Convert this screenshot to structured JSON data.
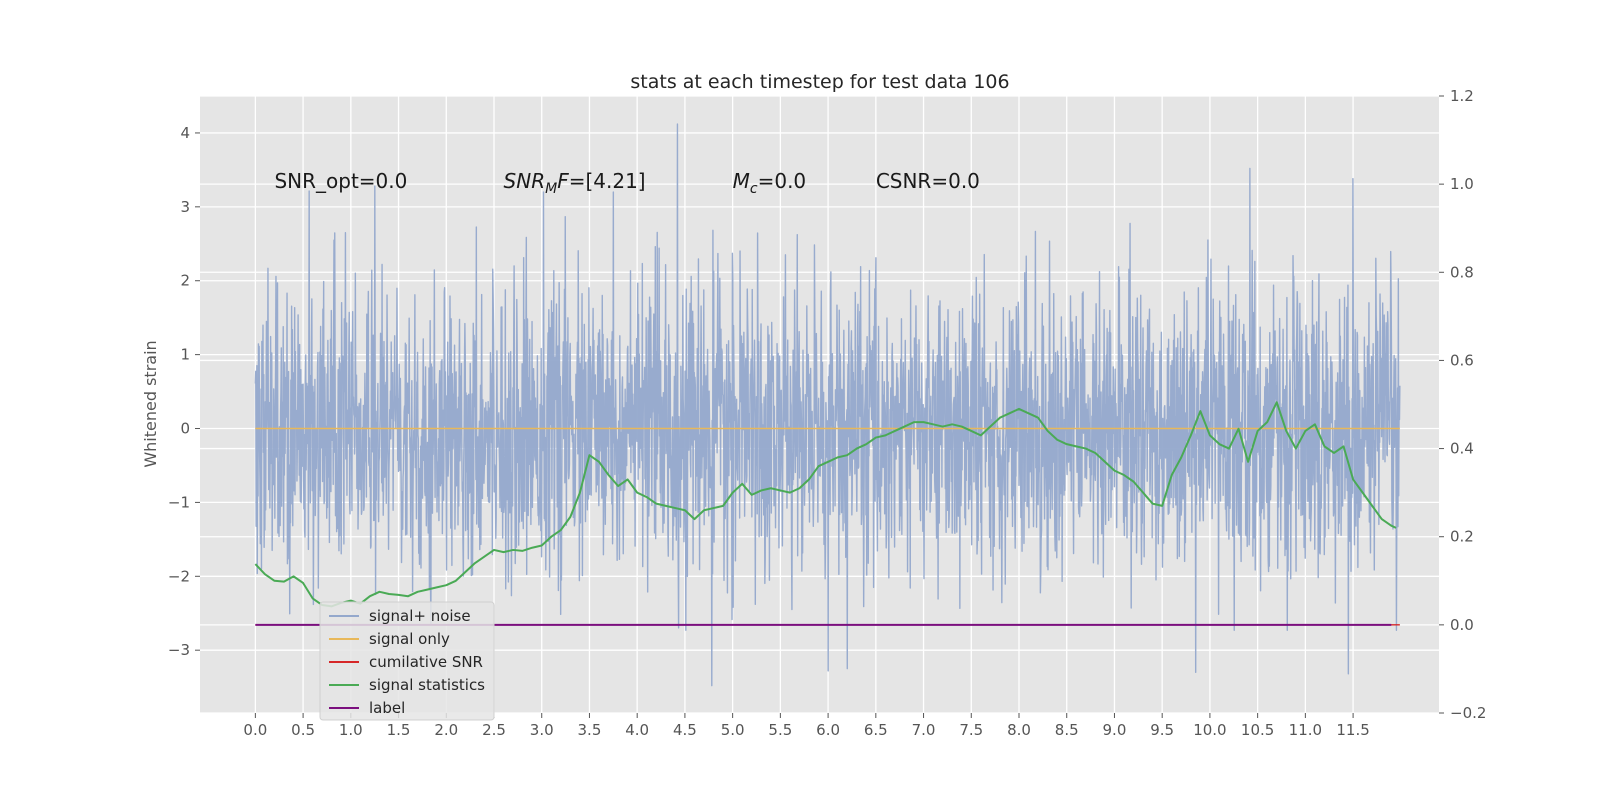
{
  "chart_data": {
    "type": "line",
    "title": "stats at each timestep for test data 106",
    "ylabel": "Whitened strain",
    "xlim": [
      -0.58,
      12.4
    ],
    "ylim": [
      -3.85,
      4.5
    ],
    "ylim_right": [
      -0.2,
      1.2
    ],
    "x_ticks": [
      0.0,
      0.5,
      1.0,
      1.5,
      2.0,
      2.5,
      3.0,
      3.5,
      4.0,
      4.5,
      5.0,
      5.5,
      6.0,
      6.5,
      7.0,
      7.5,
      8.0,
      8.5,
      9.0,
      9.5,
      10.0,
      10.5,
      11.0,
      11.5
    ],
    "x_tick_labels": [
      "0.0",
      "0.5",
      "1.0",
      "1.5",
      "2.0",
      "2.5",
      "3.0",
      "3.5",
      "4.0",
      "4.5",
      "5.0",
      "5.5",
      "6.0",
      "6.5",
      "7.0",
      "7.5",
      "8.0",
      "8.5",
      "9.0",
      "9.5",
      "10.0",
      "10.5",
      "11.0",
      "11.5"
    ],
    "y_ticks": [
      -3,
      -2,
      -1,
      0,
      1,
      2,
      3,
      4
    ],
    "y_tick_labels": [
      "−3",
      "−2",
      "−1",
      "0",
      "1",
      "2",
      "3",
      "4"
    ],
    "y_right_ticks": [
      -0.2,
      0.0,
      0.2,
      0.4,
      0.6,
      0.8,
      1.0,
      1.2
    ],
    "y_right_tick_labels": [
      "−0.2",
      "0.0",
      "0.2",
      "0.4",
      "0.6",
      "0.8",
      "1.0",
      "1.2"
    ],
    "grid": true,
    "legend_position": "lower-left",
    "annotations": [
      {
        "key": "snr_opt",
        "text": "SNR_opt=0.0",
        "x": 0.2,
        "y": 3.35
      },
      {
        "key": "snr_mf",
        "text_main": "SNR",
        "text_sub": "M",
        "text_tail": "F=[4.21]",
        "x": 2.6,
        "y": 3.35
      },
      {
        "key": "mc",
        "text_main": "M",
        "text_sub": "c",
        "text_tail": "=0.0",
        "x": 5.0,
        "y": 3.35
      },
      {
        "key": "csnr",
        "text": "CSNR=0.0",
        "x": 6.5,
        "y": 3.35
      }
    ],
    "series": [
      {
        "name": "signal+ noise",
        "color": "#94a8cc",
        "axis": "left",
        "kind": "noise",
        "x_range": [
          0.0,
          11.99
        ],
        "n_points": 3000,
        "y_min": -3.5,
        "y_max": 4.12,
        "peaks": [
          {
            "x": 4.42,
            "y": 4.12
          },
          {
            "x": 10.42,
            "y": 3.52
          },
          {
            "x": 11.5,
            "y": 3.38
          },
          {
            "x": 1.25,
            "y": 3.28
          },
          {
            "x": 3.02,
            "y": 3.2
          },
          {
            "x": 3.75,
            "y": 3.2
          },
          {
            "x": 4.78,
            "y": -3.48
          },
          {
            "x": 11.45,
            "y": -3.32
          },
          {
            "x": 9.85,
            "y": -3.3
          },
          {
            "x": 6.0,
            "y": -3.28
          },
          {
            "x": 6.2,
            "y": -3.25
          }
        ]
      },
      {
        "name": "signal only",
        "color": "#e8b85a",
        "axis": "left",
        "x": [
          0.0,
          11.99
        ],
        "y": [
          0.0,
          0.0
        ]
      },
      {
        "name": "cumilative SNR",
        "color": "#d62728",
        "axis": "right",
        "x": [
          0.0,
          11.99
        ],
        "y": [
          0.0,
          0.0
        ]
      },
      {
        "name": "signal statistics",
        "color": "#4aaa55",
        "axis": "right",
        "x": [
          0.0,
          0.1,
          0.2,
          0.3,
          0.4,
          0.5,
          0.6,
          0.7,
          0.8,
          0.9,
          1.0,
          1.1,
          1.2,
          1.3,
          1.4,
          1.5,
          1.6,
          1.7,
          1.8,
          1.9,
          2.0,
          2.1,
          2.2,
          2.3,
          2.4,
          2.5,
          2.6,
          2.7,
          2.8,
          2.9,
          3.0,
          3.1,
          3.2,
          3.3,
          3.4,
          3.5,
          3.6,
          3.7,
          3.8,
          3.9,
          4.0,
          4.1,
          4.2,
          4.3,
          4.4,
          4.5,
          4.6,
          4.7,
          4.8,
          4.9,
          5.0,
          5.1,
          5.2,
          5.3,
          5.4,
          5.5,
          5.6,
          5.7,
          5.8,
          5.9,
          6.0,
          6.1,
          6.2,
          6.3,
          6.4,
          6.5,
          6.6,
          6.7,
          6.8,
          6.9,
          7.0,
          7.1,
          7.2,
          7.3,
          7.4,
          7.5,
          7.6,
          7.7,
          7.8,
          7.9,
          8.0,
          8.1,
          8.2,
          8.3,
          8.4,
          8.5,
          8.6,
          8.7,
          8.8,
          8.9,
          9.0,
          9.1,
          9.2,
          9.3,
          9.4,
          9.5,
          9.6,
          9.7,
          9.8,
          9.9,
          10.0,
          10.1,
          10.2,
          10.3,
          10.4,
          10.5,
          10.6,
          10.7,
          10.8,
          10.9,
          11.0,
          11.1,
          11.2,
          11.3,
          11.4,
          11.5,
          11.6,
          11.7,
          11.8,
          11.9,
          11.95
        ],
        "y": [
          0.138,
          0.115,
          0.1,
          0.098,
          0.11,
          0.095,
          0.06,
          0.045,
          0.042,
          0.05,
          0.055,
          0.048,
          0.065,
          0.075,
          0.07,
          0.068,
          0.065,
          0.075,
          0.08,
          0.085,
          0.09,
          0.1,
          0.12,
          0.14,
          0.155,
          0.17,
          0.165,
          0.17,
          0.168,
          0.175,
          0.18,
          0.2,
          0.215,
          0.245,
          0.3,
          0.385,
          0.37,
          0.34,
          0.315,
          0.33,
          0.3,
          0.29,
          0.275,
          0.27,
          0.265,
          0.26,
          0.24,
          0.26,
          0.265,
          0.27,
          0.3,
          0.32,
          0.295,
          0.305,
          0.31,
          0.305,
          0.3,
          0.31,
          0.33,
          0.36,
          0.37,
          0.38,
          0.385,
          0.4,
          0.41,
          0.425,
          0.43,
          0.44,
          0.45,
          0.46,
          0.46,
          0.455,
          0.45,
          0.455,
          0.45,
          0.44,
          0.43,
          0.45,
          0.47,
          0.48,
          0.49,
          0.48,
          0.47,
          0.44,
          0.42,
          0.41,
          0.405,
          0.4,
          0.39,
          0.37,
          0.35,
          0.34,
          0.325,
          0.3,
          0.275,
          0.27,
          0.34,
          0.38,
          0.43,
          0.485,
          0.43,
          0.41,
          0.4,
          0.445,
          0.37,
          0.44,
          0.46,
          0.505,
          0.44,
          0.4,
          0.44,
          0.455,
          0.405,
          0.39,
          0.405,
          0.33,
          0.3,
          0.27,
          0.24,
          0.225,
          0.22
        ]
      },
      {
        "name": "label",
        "color": "#7b0f7e",
        "axis": "right",
        "x": [
          0.0,
          11.9
        ],
        "y": [
          0.0,
          0.0
        ]
      }
    ]
  }
}
